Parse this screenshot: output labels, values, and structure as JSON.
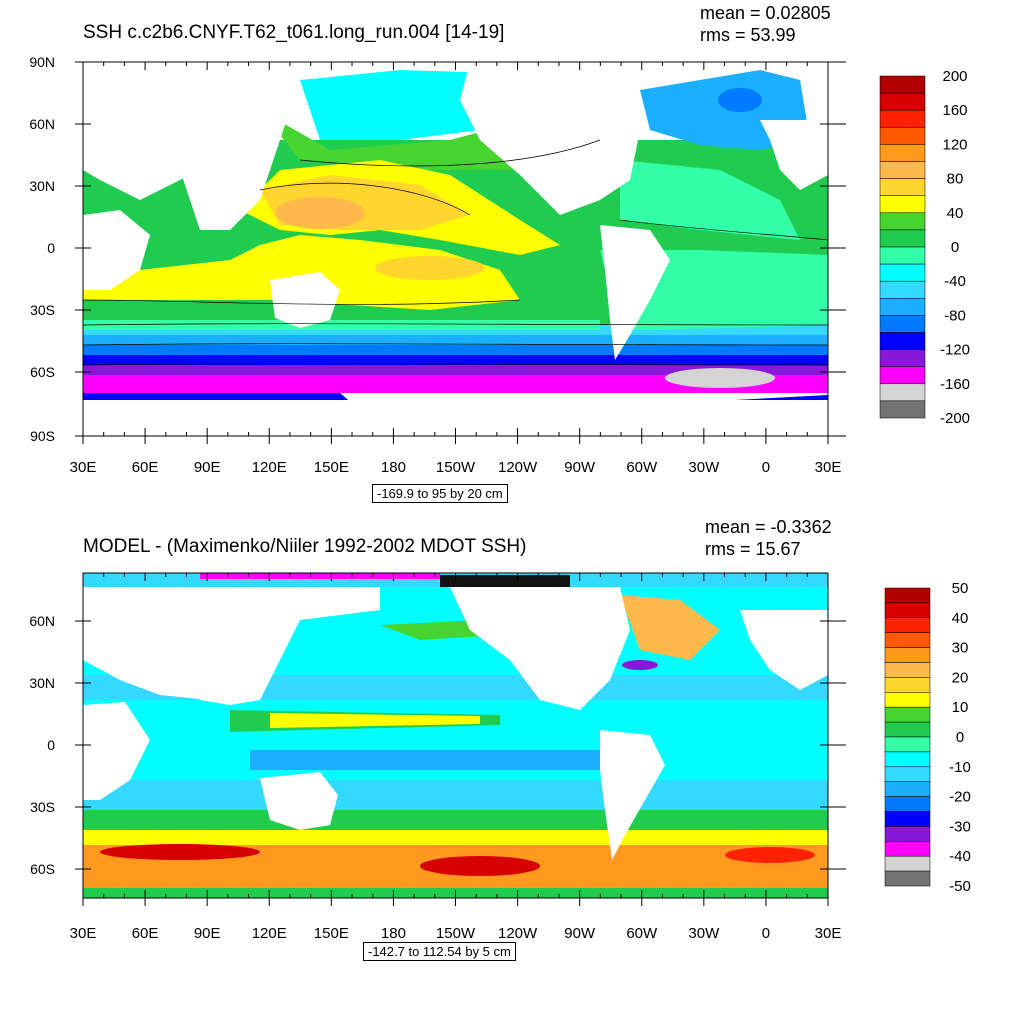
{
  "panels": [
    {
      "title": "SSH c.c2b6.CNYF.T62_t061.long_run.004 [14-19]",
      "mean": "mean = 0.02805",
      "rms": "rms = 53.99",
      "info": "-169.9 to 95 by 20 cm",
      "lat_labels": [
        "90N",
        "60N",
        "30N",
        "0",
        "30S",
        "60S",
        "90S"
      ],
      "lon_labels": [
        "30E",
        "60E",
        "90E",
        "120E",
        "150E",
        "180",
        "150W",
        "120W",
        "90W",
        "60W",
        "30W",
        "0",
        "30E"
      ],
      "colorbar": {
        "labels": [
          "200",
          "160",
          "120",
          "80",
          "40",
          "0",
          "-40",
          "-80",
          "-120",
          "-160",
          "-200"
        ],
        "colors": [
          "#b30000",
          "#d60000",
          "#ff2200",
          "#ff5a00",
          "#ff9a1e",
          "#ffb84a",
          "#ffd52e",
          "#ffff00",
          "#47d430",
          "#1fcc4f",
          "#33ffa9",
          "#00ffff",
          "#35d8ff",
          "#1ab0ff",
          "#007aff",
          "#0000ff",
          "#8a18d8",
          "#ff00ff",
          "#d4d4d4",
          "#737373"
        ]
      }
    },
    {
      "title": "MODEL - (Maximenko/Niiler 1992-2002 MDOT SSH)",
      "mean": "mean = -0.3362",
      "rms": "rms = 15.67",
      "info": "-142.7 to 112.54 by 5 cm",
      "lat_labels": [
        "60N",
        "30N",
        "0",
        "30S",
        "60S"
      ],
      "lon_labels": [
        "30E",
        "60E",
        "90E",
        "120E",
        "150E",
        "180",
        "150W",
        "120W",
        "90W",
        "60W",
        "30W",
        "0",
        "30E"
      ],
      "colorbar": {
        "labels": [
          "50",
          "40",
          "30",
          "20",
          "10",
          "0",
          "-10",
          "-20",
          "-30",
          "-40",
          "-50"
        ],
        "colors": [
          "#b30000",
          "#d60000",
          "#ff2200",
          "#ff5a00",
          "#ff9a1e",
          "#ffb84a",
          "#ffd52e",
          "#ffff00",
          "#47d430",
          "#1fcc4f",
          "#33ffa9",
          "#00ffff",
          "#35d8ff",
          "#1ab0ff",
          "#007aff",
          "#0000ff",
          "#8a18d8",
          "#ff00ff",
          "#d4d4d4",
          "#737373"
        ]
      }
    }
  ]
}
